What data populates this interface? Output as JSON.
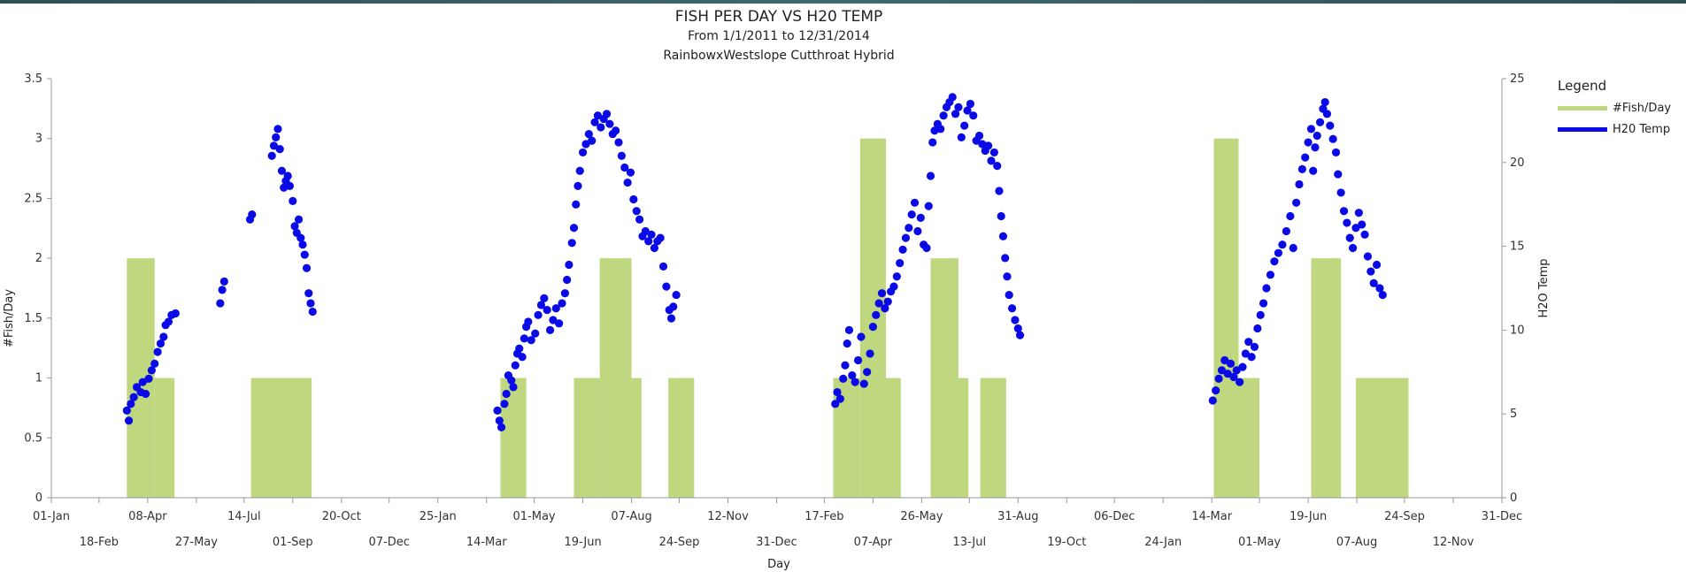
{
  "chart_data": {
    "type": "bar+scatter",
    "title": "FISH PER DAY VS H20 TEMP",
    "subtitle": "From 1/1/2011 to 12/31/2014",
    "subtitle2": "RainbowxWestslope Cutthroat Hybrid",
    "xlabel": "Day",
    "ylabel_left": "#Fish/Day",
    "ylabel_right": "H2O Temp",
    "ylim_left": [
      0,
      3.5
    ],
    "ylim_right": [
      0,
      25
    ],
    "yticks_left": [
      "0",
      "0.5",
      "1",
      "1.5",
      "2",
      "2.5",
      "3",
      "3.5"
    ],
    "yticks_right": [
      "0",
      "5",
      "10",
      "15",
      "20",
      "25"
    ],
    "xticks_row1": [
      {
        "date": "2011-01-01",
        "label": "01-Jan"
      },
      {
        "date": "2011-04-08",
        "label": "08-Apr"
      },
      {
        "date": "2011-07-14",
        "label": "14-Jul"
      },
      {
        "date": "2011-10-20",
        "label": "20-Oct"
      },
      {
        "date": "2012-01-25",
        "label": "25-Jan"
      },
      {
        "date": "2012-05-01",
        "label": "01-May"
      },
      {
        "date": "2012-08-07",
        "label": "07-Aug"
      },
      {
        "date": "2012-11-12",
        "label": "12-Nov"
      },
      {
        "date": "2013-02-17",
        "label": "17-Feb"
      },
      {
        "date": "2013-05-26",
        "label": "26-May"
      },
      {
        "date": "2013-08-31",
        "label": "31-Aug"
      },
      {
        "date": "2013-12-06",
        "label": "06-Dec"
      },
      {
        "date": "2014-03-14",
        "label": "14-Mar"
      },
      {
        "date": "2014-06-19",
        "label": "19-Jun"
      },
      {
        "date": "2014-09-24",
        "label": "24-Sep"
      },
      {
        "date": "2014-12-31",
        "label": "31-Dec"
      }
    ],
    "xticks_row2": [
      {
        "date": "2011-02-18",
        "label": "18-Feb"
      },
      {
        "date": "2011-05-27",
        "label": "27-May"
      },
      {
        "date": "2011-09-01",
        "label": "01-Sep"
      },
      {
        "date": "2011-12-07",
        "label": "07-Dec"
      },
      {
        "date": "2012-03-14",
        "label": "14-Mar"
      },
      {
        "date": "2012-06-19",
        "label": "19-Jun"
      },
      {
        "date": "2012-09-24",
        "label": "24-Sep"
      },
      {
        "date": "2012-12-31",
        "label": "31-Dec"
      },
      {
        "date": "2013-04-07",
        "label": "07-Apr"
      },
      {
        "date": "2013-07-13",
        "label": "13-Jul"
      },
      {
        "date": "2013-10-19",
        "label": "19-Oct"
      },
      {
        "date": "2014-01-24",
        "label": "24-Jan"
      },
      {
        "date": "2014-05-01",
        "label": "01-May"
      },
      {
        "date": "2014-08-07",
        "label": "07-Aug"
      },
      {
        "date": "2014-11-12",
        "label": "12-Nov"
      }
    ],
    "legend": {
      "title": "Legend",
      "placement": "right",
      "items": [
        {
          "label": "#Fish/Day",
          "color": "#bfd77f"
        },
        {
          "label": "H20 Temp",
          "color": "#0a0ae6"
        }
      ]
    },
    "bars": {
      "name": "#Fish/Day",
      "color": "#bfd77f",
      "segments": [
        {
          "start": "2011-03-18",
          "end": "2011-04-15",
          "value": 2
        },
        {
          "start": "2011-04-15",
          "end": "2011-05-05",
          "value": 1
        },
        {
          "start": "2011-07-21",
          "end": "2011-09-20",
          "value": 1
        },
        {
          "start": "2012-03-28",
          "end": "2012-04-23",
          "value": 1
        },
        {
          "start": "2012-06-10",
          "end": "2012-07-06",
          "value": 1
        },
        {
          "start": "2012-07-06",
          "end": "2012-08-07",
          "value": 2
        },
        {
          "start": "2012-08-07",
          "end": "2012-08-17",
          "value": 1
        },
        {
          "start": "2012-09-13",
          "end": "2012-10-09",
          "value": 1
        },
        {
          "start": "2013-02-26",
          "end": "2013-03-25",
          "value": 1
        },
        {
          "start": "2013-03-25",
          "end": "2013-04-20",
          "value": 3
        },
        {
          "start": "2013-04-20",
          "end": "2013-05-05",
          "value": 1
        },
        {
          "start": "2013-06-04",
          "end": "2013-07-02",
          "value": 2
        },
        {
          "start": "2013-07-02",
          "end": "2013-07-12",
          "value": 1
        },
        {
          "start": "2013-07-24",
          "end": "2013-08-19",
          "value": 1
        },
        {
          "start": "2014-03-16",
          "end": "2014-04-10",
          "value": 3
        },
        {
          "start": "2014-04-10",
          "end": "2014-05-01",
          "value": 1
        },
        {
          "start": "2014-06-22",
          "end": "2014-07-22",
          "value": 2
        },
        {
          "start": "2014-08-06",
          "end": "2014-09-28",
          "value": 1
        }
      ]
    },
    "temp_series": {
      "name": "H20 Temp",
      "color": "#0a0ae6",
      "points": [
        [
          "2011-03-18",
          5.2
        ],
        [
          "2011-03-20",
          4.6
        ],
        [
          "2011-03-22",
          5.6
        ],
        [
          "2011-03-25",
          6.0
        ],
        [
          "2011-03-28",
          6.6
        ],
        [
          "2011-04-01",
          6.3
        ],
        [
          "2011-04-03",
          6.9
        ],
        [
          "2011-04-06",
          6.2
        ],
        [
          "2011-04-09",
          7.1
        ],
        [
          "2011-04-12",
          7.6
        ],
        [
          "2011-04-15",
          8.0
        ],
        [
          "2011-04-18",
          8.7
        ],
        [
          "2011-04-21",
          9.2
        ],
        [
          "2011-04-24",
          9.6
        ],
        [
          "2011-04-26",
          10.3
        ],
        [
          "2011-04-29",
          10.5
        ],
        [
          "2011-05-02",
          10.9
        ],
        [
          "2011-05-06",
          11.0
        ],
        [
          "2011-06-20",
          11.6
        ],
        [
          "2011-06-22",
          12.4
        ],
        [
          "2011-06-24",
          12.9
        ],
        [
          "2011-07-20",
          16.6
        ],
        [
          "2011-07-22",
          16.9
        ],
        [
          "2011-08-11",
          20.4
        ],
        [
          "2011-08-13",
          21.0
        ],
        [
          "2011-08-15",
          21.5
        ],
        [
          "2011-08-17",
          22.0
        ],
        [
          "2011-08-19",
          20.8
        ],
        [
          "2011-08-21",
          19.5
        ],
        [
          "2011-08-23",
          18.5
        ],
        [
          "2011-08-25",
          18.9
        ],
        [
          "2011-08-27",
          19.2
        ],
        [
          "2011-08-29",
          18.6
        ],
        [
          "2011-09-01",
          17.7
        ],
        [
          "2011-09-03",
          16.2
        ],
        [
          "2011-09-05",
          15.8
        ],
        [
          "2011-09-07",
          16.6
        ],
        [
          "2011-09-09",
          15.5
        ],
        [
          "2011-09-11",
          15.1
        ],
        [
          "2011-09-13",
          14.5
        ],
        [
          "2011-09-15",
          13.7
        ],
        [
          "2011-09-17",
          12.2
        ],
        [
          "2011-09-19",
          11.6
        ],
        [
          "2011-09-21",
          11.1
        ],
        [
          "2012-03-25",
          5.2
        ],
        [
          "2012-03-27",
          4.6
        ],
        [
          "2012-03-29",
          4.2
        ],
        [
          "2012-04-01",
          5.6
        ],
        [
          "2012-04-03",
          6.2
        ],
        [
          "2012-04-05",
          7.3
        ],
        [
          "2012-04-08",
          7.0
        ],
        [
          "2012-04-10",
          6.6
        ],
        [
          "2012-04-12",
          7.9
        ],
        [
          "2012-04-14",
          8.6
        ],
        [
          "2012-04-16",
          8.9
        ],
        [
          "2012-04-19",
          8.4
        ],
        [
          "2012-04-21",
          9.5
        ],
        [
          "2012-04-23",
          10.2
        ],
        [
          "2012-04-25",
          10.5
        ],
        [
          "2012-04-28",
          9.4
        ],
        [
          "2012-05-02",
          9.8
        ],
        [
          "2012-05-05",
          10.9
        ],
        [
          "2012-05-08",
          11.5
        ],
        [
          "2012-05-11",
          11.9
        ],
        [
          "2012-05-14",
          11.2
        ],
        [
          "2012-05-17",
          10.0
        ],
        [
          "2012-05-20",
          10.6
        ],
        [
          "2012-05-23",
          11.3
        ],
        [
          "2012-05-26",
          10.4
        ],
        [
          "2012-05-29",
          11.6
        ],
        [
          "2012-06-01",
          12.2
        ],
        [
          "2012-06-03",
          13.0
        ],
        [
          "2012-06-05",
          13.9
        ],
        [
          "2012-06-08",
          15.2
        ],
        [
          "2012-06-10",
          16.1
        ],
        [
          "2012-06-12",
          17.5
        ],
        [
          "2012-06-14",
          18.6
        ],
        [
          "2012-06-16",
          19.5
        ],
        [
          "2012-06-19",
          20.6
        ],
        [
          "2012-06-22",
          21.1
        ],
        [
          "2012-06-25",
          21.7
        ],
        [
          "2012-06-28",
          21.3
        ],
        [
          "2012-07-01",
          22.4
        ],
        [
          "2012-07-04",
          22.8
        ],
        [
          "2012-07-07",
          22.1
        ],
        [
          "2012-07-10",
          22.6
        ],
        [
          "2012-07-13",
          22.9
        ],
        [
          "2012-07-16",
          22.3
        ],
        [
          "2012-07-19",
          21.7
        ],
        [
          "2012-07-22",
          21.9
        ],
        [
          "2012-07-25",
          21.2
        ],
        [
          "2012-07-28",
          20.4
        ],
        [
          "2012-07-31",
          19.7
        ],
        [
          "2012-08-03",
          18.8
        ],
        [
          "2012-08-06",
          19.4
        ],
        [
          "2012-08-09",
          17.8
        ],
        [
          "2012-08-12",
          17.1
        ],
        [
          "2012-08-15",
          16.6
        ],
        [
          "2012-08-18",
          15.6
        ],
        [
          "2012-08-21",
          15.9
        ],
        [
          "2012-08-24",
          15.3
        ],
        [
          "2012-08-27",
          15.7
        ],
        [
          "2012-08-30",
          14.9
        ],
        [
          "2012-09-02",
          15.3
        ],
        [
          "2012-09-05",
          15.5
        ],
        [
          "2012-09-08",
          13.8
        ],
        [
          "2012-09-11",
          12.6
        ],
        [
          "2012-09-14",
          11.2
        ],
        [
          "2012-09-16",
          10.7
        ],
        [
          "2012-09-18",
          11.4
        ],
        [
          "2012-09-21",
          12.1
        ],
        [
          "2013-02-28",
          5.6
        ],
        [
          "2013-03-02",
          6.3
        ],
        [
          "2013-03-05",
          5.9
        ],
        [
          "2013-03-08",
          7.1
        ],
        [
          "2013-03-10",
          7.9
        ],
        [
          "2013-03-12",
          9.2
        ],
        [
          "2013-03-14",
          10.0
        ],
        [
          "2013-03-17",
          7.3
        ],
        [
          "2013-03-20",
          6.9
        ],
        [
          "2013-03-23",
          8.2
        ],
        [
          "2013-03-26",
          9.6
        ],
        [
          "2013-03-29",
          6.8
        ],
        [
          "2013-04-01",
          7.5
        ],
        [
          "2013-04-04",
          8.6
        ],
        [
          "2013-04-07",
          10.2
        ],
        [
          "2013-04-10",
          10.9
        ],
        [
          "2013-04-13",
          11.6
        ],
        [
          "2013-04-16",
          12.2
        ],
        [
          "2013-04-19",
          11.3
        ],
        [
          "2013-04-22",
          11.7
        ],
        [
          "2013-04-25",
          12.3
        ],
        [
          "2013-04-28",
          12.6
        ],
        [
          "2013-05-01",
          13.2
        ],
        [
          "2013-05-04",
          14.0
        ],
        [
          "2013-05-07",
          14.8
        ],
        [
          "2013-05-10",
          15.5
        ],
        [
          "2013-05-13",
          16.1
        ],
        [
          "2013-05-16",
          16.9
        ],
        [
          "2013-05-19",
          17.6
        ],
        [
          "2013-05-22",
          15.9
        ],
        [
          "2013-05-25",
          16.7
        ],
        [
          "2013-05-28",
          15.1
        ],
        [
          "2013-05-31",
          14.9
        ],
        [
          "2013-06-02",
          17.4
        ],
        [
          "2013-06-04",
          19.2
        ],
        [
          "2013-06-06",
          21.2
        ],
        [
          "2013-06-08",
          21.9
        ],
        [
          "2013-06-11",
          22.3
        ],
        [
          "2013-06-14",
          22.0
        ],
        [
          "2013-06-17",
          22.8
        ],
        [
          "2013-06-20",
          23.3
        ],
        [
          "2013-06-23",
          23.6
        ],
        [
          "2013-06-26",
          23.9
        ],
        [
          "2013-06-29",
          22.9
        ],
        [
          "2013-07-02",
          23.3
        ],
        [
          "2013-07-05",
          21.5
        ],
        [
          "2013-07-08",
          22.2
        ],
        [
          "2013-07-11",
          23.1
        ],
        [
          "2013-07-14",
          23.5
        ],
        [
          "2013-07-17",
          22.8
        ],
        [
          "2013-07-20",
          21.3
        ],
        [
          "2013-07-23",
          21.6
        ],
        [
          "2013-07-26",
          21.1
        ],
        [
          "2013-07-29",
          20.7
        ],
        [
          "2013-08-01",
          21.0
        ],
        [
          "2013-08-04",
          20.1
        ],
        [
          "2013-08-07",
          20.6
        ],
        [
          "2013-08-10",
          19.8
        ],
        [
          "2013-08-12",
          18.3
        ],
        [
          "2013-08-14",
          16.8
        ],
        [
          "2013-08-16",
          15.6
        ],
        [
          "2013-08-18",
          14.3
        ],
        [
          "2013-08-20",
          13.2
        ],
        [
          "2013-08-22",
          12.1
        ],
        [
          "2013-08-25",
          11.3
        ],
        [
          "2013-08-28",
          10.6
        ],
        [
          "2013-08-31",
          10.1
        ],
        [
          "2013-09-02",
          9.7
        ],
        [
          "2014-03-15",
          5.8
        ],
        [
          "2014-03-18",
          6.4
        ],
        [
          "2014-03-21",
          7.1
        ],
        [
          "2014-03-24",
          7.6
        ],
        [
          "2014-03-27",
          8.2
        ],
        [
          "2014-03-30",
          7.4
        ],
        [
          "2014-04-02",
          8.0
        ],
        [
          "2014-04-05",
          7.2
        ],
        [
          "2014-04-08",
          7.6
        ],
        [
          "2014-04-11",
          6.9
        ],
        [
          "2014-04-14",
          7.8
        ],
        [
          "2014-04-17",
          8.6
        ],
        [
          "2014-04-20",
          9.3
        ],
        [
          "2014-04-23",
          8.4
        ],
        [
          "2014-04-26",
          9.0
        ],
        [
          "2014-04-29",
          10.1
        ],
        [
          "2014-05-02",
          10.9
        ],
        [
          "2014-05-05",
          11.6
        ],
        [
          "2014-05-08",
          12.5
        ],
        [
          "2014-05-12",
          13.3
        ],
        [
          "2014-05-16",
          14.1
        ],
        [
          "2014-05-20",
          14.6
        ],
        [
          "2014-05-24",
          15.1
        ],
        [
          "2014-05-28",
          15.9
        ],
        [
          "2014-06-01",
          16.8
        ],
        [
          "2014-06-04",
          14.9
        ],
        [
          "2014-06-07",
          17.6
        ],
        [
          "2014-06-10",
          18.7
        ],
        [
          "2014-06-13",
          19.6
        ],
        [
          "2014-06-16",
          20.3
        ],
        [
          "2014-06-19",
          21.2
        ],
        [
          "2014-06-22",
          22.0
        ],
        [
          "2014-06-24",
          19.5
        ],
        [
          "2014-06-26",
          20.9
        ],
        [
          "2014-06-28",
          21.6
        ],
        [
          "2014-07-01",
          22.4
        ],
        [
          "2014-07-04",
          23.2
        ],
        [
          "2014-07-06",
          23.6
        ],
        [
          "2014-07-08",
          22.9
        ],
        [
          "2014-07-11",
          22.2
        ],
        [
          "2014-07-14",
          21.4
        ],
        [
          "2014-07-17",
          20.6
        ],
        [
          "2014-07-19",
          19.3
        ],
        [
          "2014-07-22",
          18.2
        ],
        [
          "2014-07-25",
          17.1
        ],
        [
          "2014-07-28",
          16.4
        ],
        [
          "2014-07-31",
          15.5
        ],
        [
          "2014-08-03",
          14.9
        ],
        [
          "2014-08-06",
          16.1
        ],
        [
          "2014-08-09",
          17.0
        ],
        [
          "2014-08-12",
          16.3
        ],
        [
          "2014-08-15",
          15.7
        ],
        [
          "2014-08-18",
          14.4
        ],
        [
          "2014-08-21",
          13.5
        ],
        [
          "2014-08-24",
          12.8
        ],
        [
          "2014-08-27",
          13.9
        ],
        [
          "2014-08-30",
          12.5
        ],
        [
          "2014-09-02",
          12.1
        ]
      ]
    }
  }
}
